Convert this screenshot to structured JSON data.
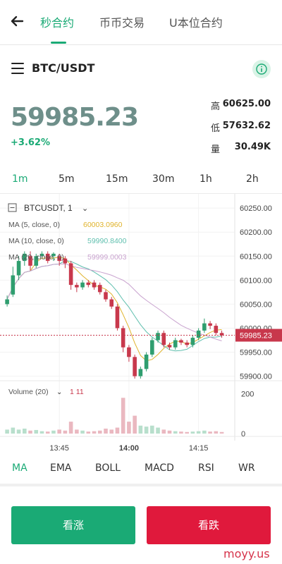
{
  "nav": {
    "tabs": [
      {
        "label": "秒合约",
        "active": true
      },
      {
        "label": "币币交易",
        "active": false
      },
      {
        "label": "U本位合约",
        "active": false
      }
    ]
  },
  "pair": {
    "symbol": "BTC/USDT"
  },
  "ticker": {
    "price": "59985.23",
    "change": "+3.62%",
    "high_label": "高",
    "high": "60625.00",
    "low_label": "低",
    "low": "57632.62",
    "vol_label": "量",
    "vol": "30.49K"
  },
  "timeframes": [
    "1m",
    "5m",
    "15m",
    "30m",
    "1h",
    "2h"
  ],
  "active_timeframe": "1m",
  "chart_header": {
    "symbol": "BTCUSDT, 1",
    "ma5_label": "MA (5, close, 0)",
    "ma5_value": "60003.0960",
    "ma10_label": "MA (10, close, 0)",
    "ma10_value": "59990.8400",
    "ma20_label": "MA (20, close, 0)",
    "ma20_value": "59999.0003",
    "volume_label": "Volume (20)",
    "volume_value": "1 11",
    "current_price_tag": "59985.23"
  },
  "chart_data": {
    "type": "candlestick",
    "price_ticks": [
      "60250.00",
      "60200.00",
      "60150.00",
      "60100.00",
      "60050.00",
      "60000.00",
      "59950.00",
      "59900.00"
    ],
    "price_tick_values": [
      60250,
      60200,
      60150,
      60100,
      60050,
      60000,
      59950,
      59900
    ],
    "price_range": [
      59895,
      60262
    ],
    "volume_ticks": [
      "200",
      "0"
    ],
    "volume_range": [
      0,
      220
    ],
    "time_ticks": [
      "13:45",
      "14:00",
      "14:15"
    ],
    "time_tick_index": [
      9,
      21,
      33
    ],
    "candles": [
      {
        "o": 60050,
        "c": 60060,
        "h": 60068,
        "l": 60045,
        "v": 20
      },
      {
        "o": 60070,
        "c": 60110,
        "h": 60128,
        "l": 60065,
        "v": 30
      },
      {
        "o": 60110,
        "c": 60140,
        "h": 60150,
        "l": 60100,
        "v": 20
      },
      {
        "o": 60140,
        "c": 60155,
        "h": 60160,
        "l": 60130,
        "v": 25
      },
      {
        "o": 60150,
        "c": 60130,
        "h": 60160,
        "l": 60120,
        "v": 15
      },
      {
        "o": 60130,
        "c": 60150,
        "h": 60155,
        "l": 60125,
        "v": 18
      },
      {
        "o": 60150,
        "c": 60155,
        "h": 60160,
        "l": 60145,
        "v": 12
      },
      {
        "o": 60155,
        "c": 60140,
        "h": 60160,
        "l": 60135,
        "v": 10
      },
      {
        "o": 60150,
        "c": 60155,
        "h": 60158,
        "l": 60140,
        "v": 15
      },
      {
        "o": 60150,
        "c": 60140,
        "h": 60155,
        "l": 60130,
        "v": 20
      },
      {
        "o": 60145,
        "c": 60135,
        "h": 60150,
        "l": 60125,
        "v": 15
      },
      {
        "o": 60135,
        "c": 60090,
        "h": 60140,
        "l": 60080,
        "v": 60
      },
      {
        "o": 60090,
        "c": 60085,
        "h": 60095,
        "l": 60075,
        "v": 20
      },
      {
        "o": 60085,
        "c": 60095,
        "h": 60100,
        "l": 60080,
        "v": 15
      },
      {
        "o": 60095,
        "c": 60090,
        "h": 60100,
        "l": 60085,
        "v": 10
      },
      {
        "o": 60095,
        "c": 60085,
        "h": 60100,
        "l": 60080,
        "v": 12
      },
      {
        "o": 60090,
        "c": 60075,
        "h": 60095,
        "l": 60070,
        "v": 15
      },
      {
        "o": 60075,
        "c": 60060,
        "h": 60080,
        "l": 60055,
        "v": 25
      },
      {
        "o": 60060,
        "c": 60045,
        "h": 60065,
        "l": 60040,
        "v": 20
      },
      {
        "o": 60045,
        "c": 60000,
        "h": 60050,
        "l": 59995,
        "v": 30
      },
      {
        "o": 60000,
        "c": 59960,
        "h": 60005,
        "l": 59950,
        "v": 180
      },
      {
        "o": 59960,
        "c": 59940,
        "h": 59965,
        "l": 59930,
        "v": 60
      },
      {
        "o": 59940,
        "c": 59900,
        "h": 59945,
        "l": 59895,
        "v": 90
      },
      {
        "o": 59900,
        "c": 59915,
        "h": 59920,
        "l": 59895,
        "v": 40
      },
      {
        "o": 59915,
        "c": 59945,
        "h": 59950,
        "l": 59910,
        "v": 35
      },
      {
        "o": 59945,
        "c": 59975,
        "h": 59980,
        "l": 59940,
        "v": 40
      },
      {
        "o": 59975,
        "c": 59990,
        "h": 59995,
        "l": 59970,
        "v": 30
      },
      {
        "o": 59990,
        "c": 59965,
        "h": 59995,
        "l": 59960,
        "v": 20
      },
      {
        "o": 59965,
        "c": 59960,
        "h": 59970,
        "l": 59955,
        "v": 15
      },
      {
        "o": 59960,
        "c": 59975,
        "h": 59980,
        "l": 59955,
        "v": 12
      },
      {
        "o": 59975,
        "c": 59970,
        "h": 59978,
        "l": 59965,
        "v": 10
      },
      {
        "o": 59970,
        "c": 59965,
        "h": 59975,
        "l": 59960,
        "v": 8
      },
      {
        "o": 59965,
        "c": 59980,
        "h": 59985,
        "l": 59960,
        "v": 10
      },
      {
        "o": 59980,
        "c": 59995,
        "h": 60000,
        "l": 59975,
        "v": 12
      },
      {
        "o": 59995,
        "c": 60010,
        "h": 60020,
        "l": 59990,
        "v": 15
      },
      {
        "o": 60010,
        "c": 60005,
        "h": 60015,
        "l": 59998,
        "v": 10
      },
      {
        "o": 60005,
        "c": 59990,
        "h": 60010,
        "l": 59985,
        "v": 12
      },
      {
        "o": 59990,
        "c": 59985,
        "h": 59995,
        "l": 59980,
        "v": 8
      }
    ],
    "ma5_color": "#e0b32c",
    "ma10_color": "#5fbfae",
    "ma20_color": "#c9a3cf",
    "up_color": "#2f9e6f",
    "down_color": "#c8384c"
  },
  "indicators": [
    "MA",
    "EMA",
    "BOLL",
    "MACD",
    "RSI",
    "WR"
  ],
  "active_indicator": "MA",
  "actions": {
    "buy": "看涨",
    "sell": "看跌"
  },
  "watermark": "moyy.us",
  "colors": {
    "accent": "#1aaa75",
    "sell": "#e0193c",
    "price": "#6e8f8a"
  }
}
